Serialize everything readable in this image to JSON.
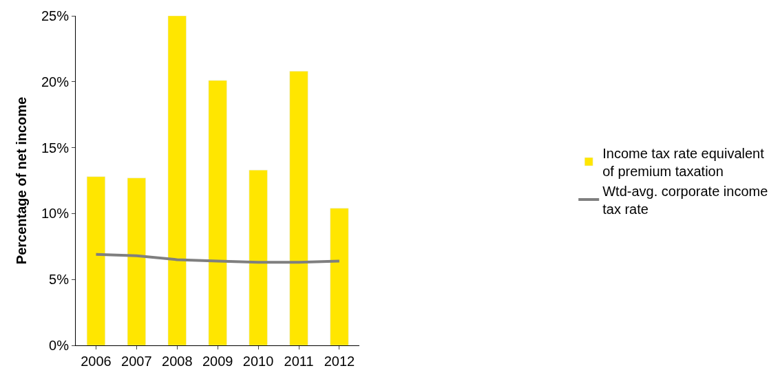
{
  "chart_data": {
    "type": "bar",
    "ylabel": "Percentage of net income",
    "categories": [
      "2006",
      "2007",
      "2008",
      "2009",
      "2010",
      "2011",
      "2012"
    ],
    "series": [
      {
        "name": "Income tax rate equivalent of premium taxation",
        "color": "#ffe600",
        "values": [
          12.8,
          12.7,
          25,
          20.1,
          13.3,
          20.8,
          10.4
        ]
      },
      {
        "name": "Wtd-avg. corporate income tax rate",
        "type": "line",
        "color": "#7f7f7f",
        "values": [
          6.9,
          6.8,
          6.5,
          6.4,
          6.3,
          6.3,
          6.4
        ]
      }
    ],
    "ylim": [
      0,
      25
    ],
    "yticks": [
      {
        "value": 0,
        "label": "0%"
      },
      {
        "value": 5,
        "label": "5%"
      },
      {
        "value": 10,
        "label": "10%"
      },
      {
        "value": 15,
        "label": "15%"
      },
      {
        "value": 20,
        "label": "20%"
      },
      {
        "value": 25,
        "label": "25%"
      }
    ],
    "legend": "right",
    "marker": "none"
  }
}
